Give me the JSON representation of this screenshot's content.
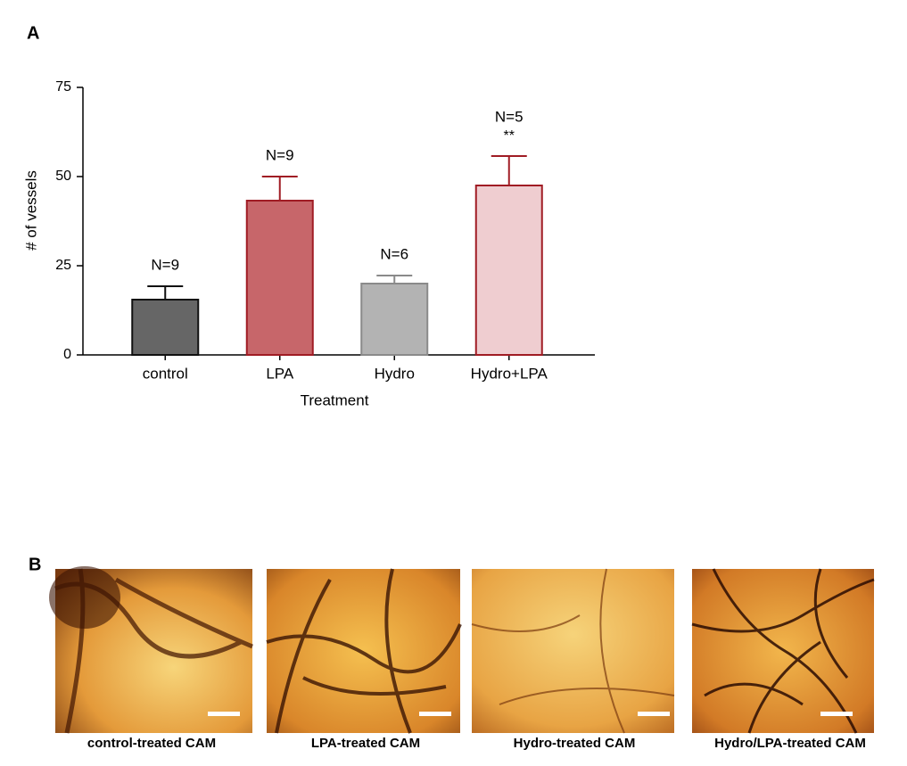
{
  "chart_data": {
    "type": "bar",
    "categories": [
      "control",
      "LPA",
      "Hydro",
      "Hydro+LPA"
    ],
    "values": [
      15.5,
      43.25,
      20,
      47.5
    ],
    "errors": [
      3.75,
      6.75,
      2.25,
      8.25
    ],
    "bar_colors": [
      "#666666",
      "#c7666a",
      "#b3b3b3",
      "#efcdd0"
    ],
    "edge_colors": [
      "#111111",
      "#a01c24",
      "#8a8a8a",
      "#a01c24"
    ],
    "annotations": [
      "N=9",
      "N=9",
      "N=6",
      "N=5"
    ],
    "significance": [
      null,
      null,
      null,
      "**"
    ],
    "y_label": "# of vessels",
    "x_label": "Treatment",
    "ylim": [
      0,
      75
    ],
    "yticks": [
      0,
      25,
      50,
      75
    ]
  },
  "panel_labels": [
    "A",
    "B"
  ],
  "images": [
    {
      "caption": "control-treated CAM"
    },
    {
      "caption": "LPA-treated CAM"
    },
    {
      "caption": "Hydro-treated CAM"
    },
    {
      "caption": "Hydro/LPA-treated CAM"
    }
  ]
}
